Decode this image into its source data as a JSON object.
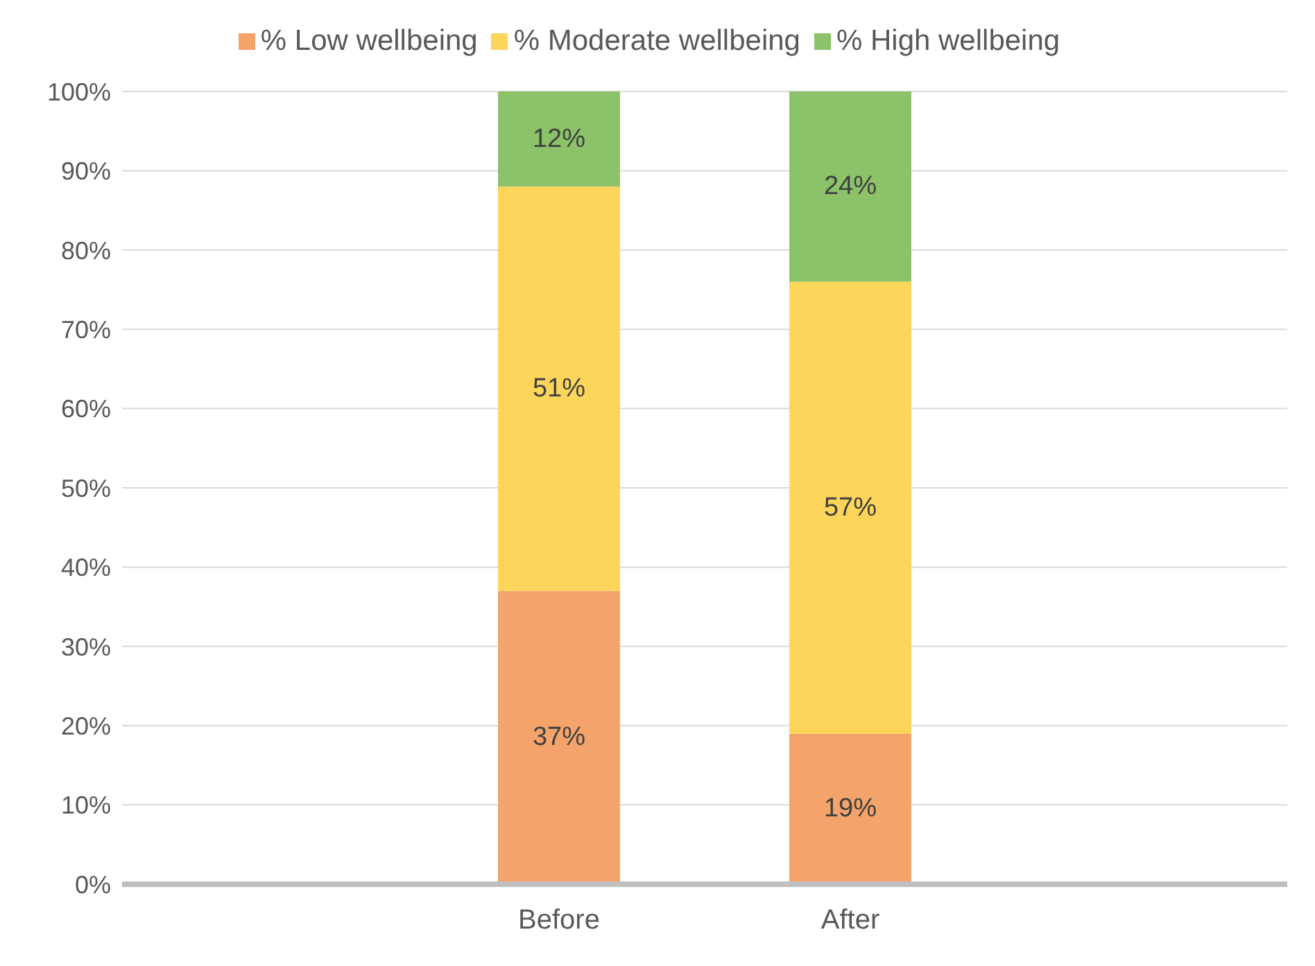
{
  "chart_data": {
    "type": "bar",
    "stacked": true,
    "categories": [
      null,
      "Before",
      "After",
      null
    ],
    "series": [
      {
        "name": "% Low wellbeing",
        "color": "#f4a46a",
        "values": [
          null,
          37,
          19,
          null
        ]
      },
      {
        "name": "% Moderate wellbeing",
        "color": "#fcd55a",
        "values": [
          null,
          51,
          57,
          null
        ]
      },
      {
        "name": "% High wellbeing",
        "color": "#8cc26a",
        "values": [
          null,
          12,
          24,
          null
        ]
      }
    ],
    "ylim": [
      0,
      100
    ],
    "yticks": [
      {
        "value": 0,
        "label": "0%"
      },
      {
        "value": 10,
        "label": "10%"
      },
      {
        "value": 20,
        "label": "20%"
      },
      {
        "value": 30,
        "label": "30%"
      },
      {
        "value": 40,
        "label": "40%"
      },
      {
        "value": 50,
        "label": "50%"
      },
      {
        "value": 60,
        "label": "60%"
      },
      {
        "value": 70,
        "label": "70%"
      },
      {
        "value": 80,
        "label": "80%"
      },
      {
        "value": 90,
        "label": "90%"
      },
      {
        "value": 100,
        "label": "100%"
      }
    ],
    "value_labels": [
      [
        null,
        "37%",
        "19%",
        null
      ],
      [
        null,
        "51%",
        "57%",
        null
      ],
      [
        null,
        "12%",
        "24%",
        null
      ]
    ],
    "grid": "y",
    "legend": "top"
  }
}
